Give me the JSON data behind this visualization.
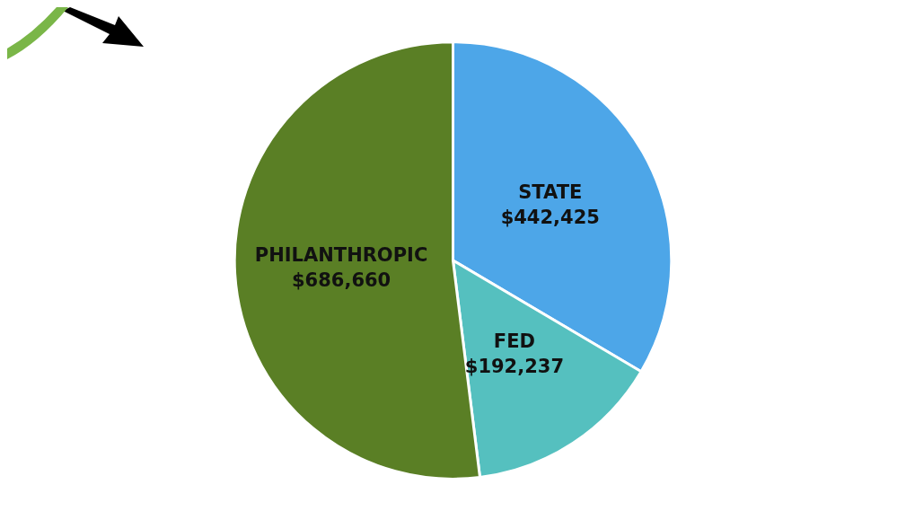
{
  "chart_data": {
    "type": "pie",
    "categories": [
      "STATE",
      "FED",
      "PHILANTHROPIC"
    ],
    "values": [
      442425,
      192237,
      686660
    ],
    "value_labels": [
      "$442,425",
      "$192,237",
      "$686,660"
    ],
    "colors": [
      "#4da6e8",
      "#55c0bf",
      "#5a7f25"
    ],
    "legend": false
  }
}
